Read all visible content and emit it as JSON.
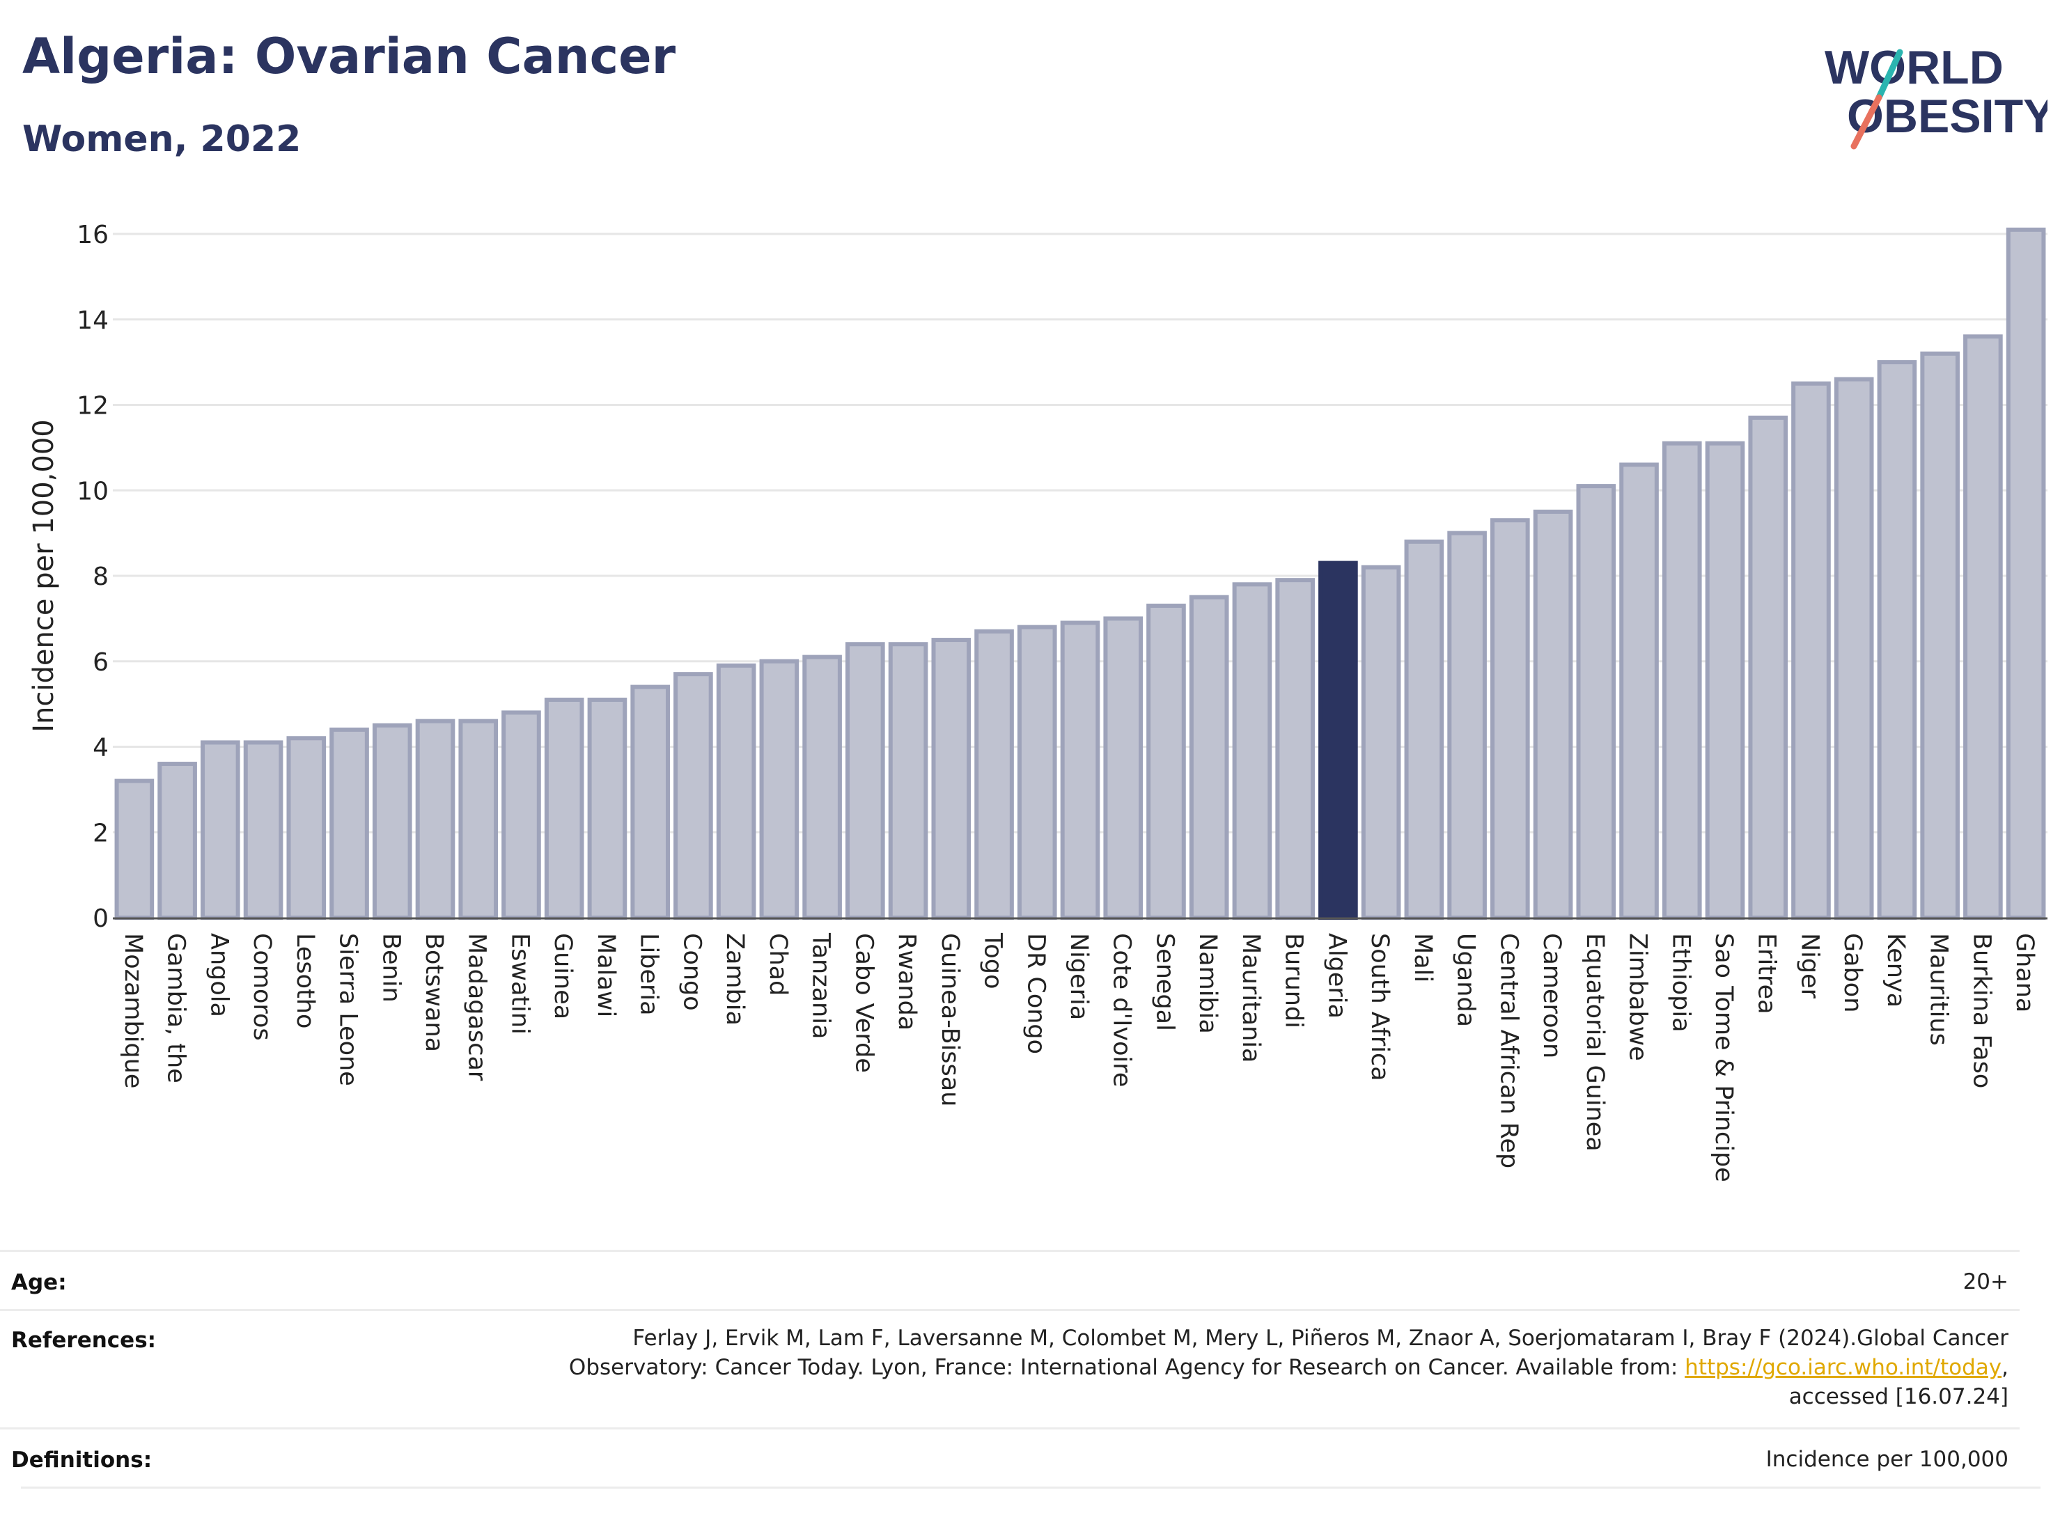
{
  "header": {
    "title": "Algeria: Ovarian Cancer",
    "subtitle": "Women, 2022",
    "logo_line1": "WORLD",
    "logo_line2": "OBESITY"
  },
  "colors": {
    "title": "#2b3460",
    "bar_default": "#bfc2d0",
    "bar_default_stroke": "#9ea3ba",
    "bar_highlight": "#2b3460",
    "logo_teal": "#2bb5b0",
    "logo_coral": "#e8715e",
    "link": "#e0a800"
  },
  "chart_data": {
    "type": "bar",
    "ylabel": "Incidence per 100,000",
    "ylim": [
      0,
      16
    ],
    "yticks": [
      0,
      2,
      4,
      6,
      8,
      10,
      12,
      14,
      16
    ],
    "highlight": "Algeria",
    "categories": [
      "Mozambique",
      "Gambia, the",
      "Angola",
      "Comoros",
      "Lesotho",
      "Sierra Leone",
      "Benin",
      "Botswana",
      "Madagascar",
      "Eswatini",
      "Guinea",
      "Malawi",
      "Liberia",
      "Congo",
      "Zambia",
      "Chad",
      "Tanzania",
      "Cabo Verde",
      "Rwanda",
      "Guinea-Bissau",
      "Togo",
      "DR Congo",
      "Nigeria",
      "Cote d'Ivoire",
      "Senegal",
      "Namibia",
      "Mauritania",
      "Burundi",
      "Algeria",
      "South Africa",
      "Mali",
      "Uganda",
      "Central African Rep",
      "Cameroon",
      "Equatorial Guinea",
      "Zimbabwe",
      "Ethiopia",
      "Sao Tome & Principe",
      "Eritrea",
      "Niger",
      "Gabon",
      "Kenya",
      "Mauritius",
      "Burkina Faso",
      "Ghana"
    ],
    "values": [
      3.2,
      3.6,
      4.1,
      4.1,
      4.2,
      4.4,
      4.5,
      4.6,
      4.6,
      4.8,
      5.1,
      5.1,
      5.4,
      5.7,
      5.9,
      6.0,
      6.1,
      6.4,
      6.4,
      6.5,
      6.7,
      6.8,
      6.9,
      7.0,
      7.3,
      7.5,
      7.8,
      7.9,
      8.3,
      8.2,
      8.8,
      9.0,
      9.3,
      9.5,
      10.1,
      10.6,
      11.1,
      11.1,
      11.7,
      12.5,
      12.6,
      13.0,
      13.2,
      13.6,
      16.1
    ]
  },
  "meta": {
    "age_label": "Age:",
    "age_value": "20+",
    "references_label": "References:",
    "references_line1": "Ferlay J, Ervik M, Lam F, Laversanne M, Colombet M, Mery L, Piñeros M, Znaor A, Soerjomataram I, Bray F (2024).Global Cancer",
    "references_line2_prefix": "Observatory: Cancer Today. Lyon, France: International Agency for Research on Cancer. Available from: ",
    "references_link": "https://gco.iarc.who.int/today",
    "references_line2_suffix": ",",
    "references_line3": "accessed [16.07.24]",
    "definitions_label": "Definitions:",
    "definitions_value": "Incidence per 100,000"
  }
}
